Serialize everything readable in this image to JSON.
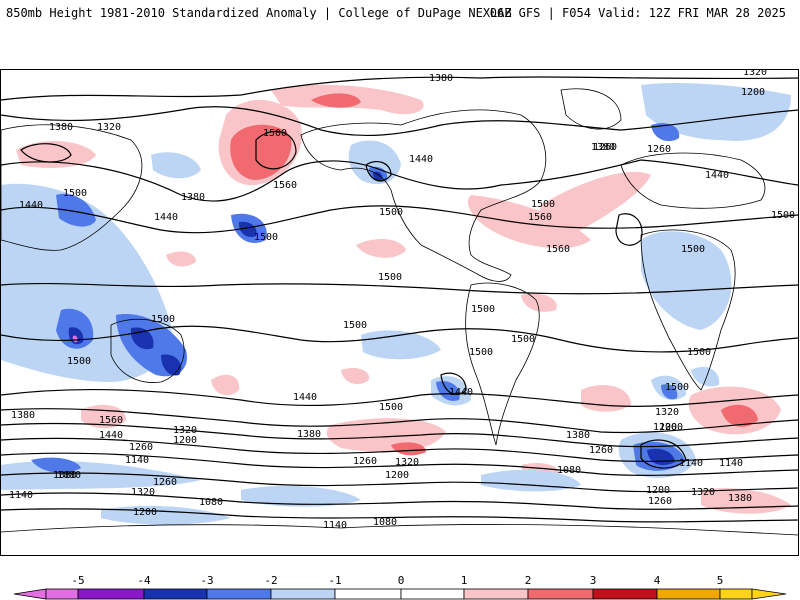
{
  "header": {
    "title": "850mb Height 1981-2010 Standardized Anomaly | College of DuPage NEXLAB",
    "run_info": "06Z GFS | F054 Valid: 12Z FRI MAR 28 2025"
  },
  "map": {
    "contour_labels": [
      "1380",
      "1320",
      "1200",
      "1500",
      "1560",
      "1440",
      "1260",
      "1140",
      "1080",
      "1380",
      "1320",
      "1500",
      "1440",
      "1500",
      "1440",
      "1380",
      "1500",
      "1500",
      "1560",
      "1560",
      "1500",
      "1500",
      "1500",
      "1500",
      "1500",
      "1500",
      "1500",
      "1500",
      "1500",
      "1440",
      "1500",
      "1440",
      "1320",
      "1200",
      "1500",
      "1380",
      "1560",
      "1440",
      "1380",
      "1320",
      "1260",
      "1200",
      "1140",
      "1080",
      "1260",
      "1320",
      "1200",
      "1140",
      "1080",
      "1140",
      "1080",
      "1260",
      "1200",
      "1380",
      "1500",
      "1440",
      "1380",
      "1140",
      "1080",
      "1260",
      "1320",
      "1200",
      "1320",
      "1380",
      "1260",
      "1200",
      "1260"
    ],
    "anomaly_colors": {
      "neg5": "#e36ee3",
      "neg4": "#8a18c9",
      "neg3": "#1832b0",
      "neg2": "#4f79e8",
      "neg1": "#bcd5f5",
      "pos1": "#f9c5c8",
      "pos2": "#f06a70",
      "pos3": "#c0101c",
      "pos4": "#f0a800",
      "pos5": "#ffd31a"
    }
  },
  "colorbar": {
    "ticks": [
      "-5",
      "-4",
      "-3",
      "-2",
      "-1",
      "0",
      "1",
      "2",
      "3",
      "4",
      "5"
    ],
    "colors": [
      "#e36ee3",
      "#8a18c9",
      "#1832b0",
      "#4f79e8",
      "#bcd5f5",
      "#ffffff",
      "#ffffff",
      "#f9c5c8",
      "#f06a70",
      "#c0101c",
      "#f0a800",
      "#ffd31a"
    ]
  }
}
